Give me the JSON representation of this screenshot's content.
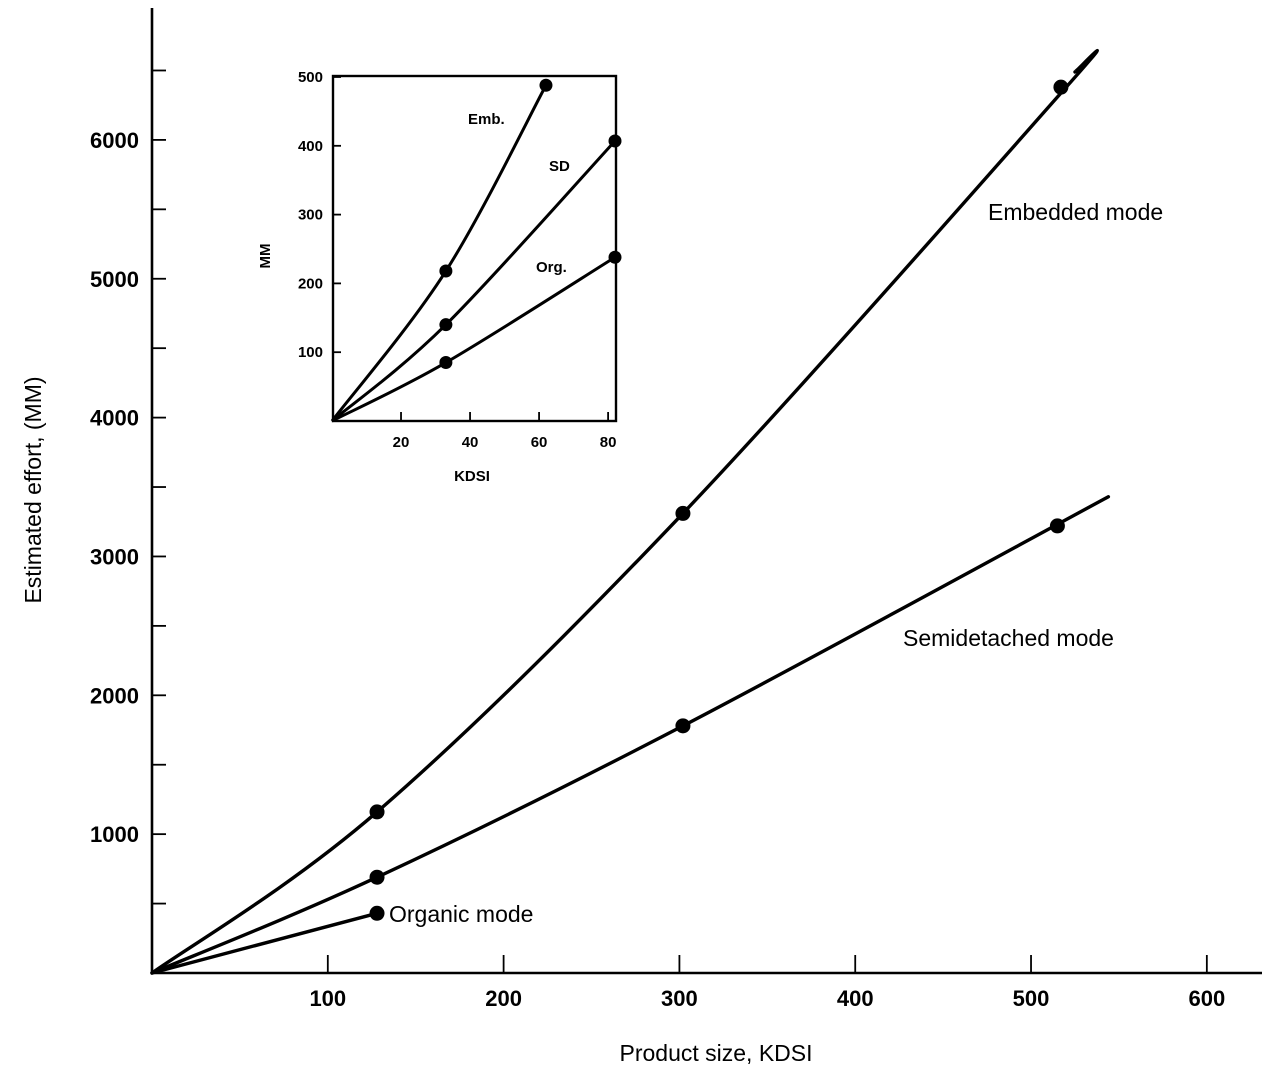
{
  "chart_data": [
    {
      "type": "line",
      "xlabel": "Product size, KDSI",
      "ylabel": "Estimated effort, (MM)",
      "xlim": [
        0,
        620
      ],
      "ylim": [
        0,
        6950
      ],
      "xticks": [
        100,
        200,
        300,
        400,
        500,
        600
      ],
      "yticks": [
        1000,
        2000,
        3000,
        4000,
        5000,
        6000
      ],
      "series": [
        {
          "name": "Embedded mode",
          "curve": [
            [
              0,
              0
            ],
            [
              128,
              1160
            ],
            [
              302,
              3310
            ],
            [
              520,
              6380
            ],
            [
              525,
              6490
            ]
          ],
          "points": [
            [
              128,
              1160
            ],
            [
              302,
              3310
            ],
            [
              517,
              6380
            ]
          ]
        },
        {
          "name": "Semidetached mode",
          "curve": [
            [
              0,
              0
            ],
            [
              128,
              690
            ],
            [
              302,
              1780
            ],
            [
              544,
              3430
            ]
          ],
          "points": [
            [
              128,
              690
            ],
            [
              302,
              1780
            ],
            [
              515,
              3220
            ]
          ]
        },
        {
          "name": "Organic mode",
          "curve": [
            [
              0,
              0
            ],
            [
              128,
              430
            ]
          ],
          "points": [
            [
              128,
              430
            ]
          ]
        }
      ]
    },
    {
      "type": "line",
      "xlabel": "KDSI",
      "ylabel": "MM",
      "xlim": [
        0,
        82
      ],
      "ylim": [
        0,
        500
      ],
      "xticks": [
        20,
        40,
        60,
        80
      ],
      "yticks": [
        100,
        200,
        300,
        400,
        500
      ],
      "series": [
        {
          "name": "Emb.",
          "curve": [
            [
              0,
              0
            ],
            [
              33,
              218
            ],
            [
              62,
              488
            ]
          ],
          "points": [
            [
              33,
              218
            ],
            [
              62,
              488
            ]
          ]
        },
        {
          "name": "SD",
          "curve": [
            [
              0,
              0
            ],
            [
              33,
              140
            ],
            [
              82,
              407
            ]
          ],
          "points": [
            [
              33,
              140
            ],
            [
              82,
              407
            ]
          ]
        },
        {
          "name": "Org.",
          "curve": [
            [
              0,
              0
            ],
            [
              33,
              85
            ],
            [
              82,
              238
            ]
          ],
          "points": [
            [
              33,
              85
            ],
            [
              82,
              238
            ]
          ]
        }
      ]
    }
  ]
}
